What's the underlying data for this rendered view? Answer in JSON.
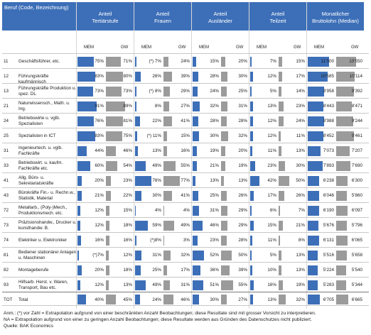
{
  "headers": {
    "beruf": "Beruf (Code, Bezeichnung)",
    "groups": [
      {
        "line1": "Anteil",
        "line2": "Tertiärstufe"
      },
      {
        "line1": "Anteil",
        "line2": "Frauen"
      },
      {
        "line1": "Anteil",
        "line2": "Ausländer"
      },
      {
        "line1": "Anteil",
        "line2": "Teilzeit"
      },
      {
        "line1": "Monatlicher",
        "line2": "Bruttolohn (Median)"
      }
    ],
    "sub_mem": "MEM",
    "sub_gw": "GW"
  },
  "colors": {
    "header": "#3d6fb8",
    "mem_bar": "#3d6fb8",
    "gw_bar": "#9b9b9b"
  },
  "rows": [
    {
      "code": "11",
      "name": [
        "Geschäftsführer, etc."
      ],
      "values": [
        {
          "mem": "75%",
          "mem_pct": 75,
          "gw": "71%",
          "gw_pct": 71
        },
        {
          "mem": "(*) 7%",
          "mem_pct": 7,
          "gw": "24%",
          "gw_pct": 24
        },
        {
          "mem": "15%",
          "mem_pct": 15,
          "gw": "20%",
          "gw_pct": 20
        },
        {
          "mem": "7%",
          "mem_pct": 7,
          "gw": "15%",
          "gw_pct": 15
        },
        {
          "mem": "11'500",
          "mem_num": 11500,
          "gw": "10'550",
          "gw_num": 10550
        }
      ]
    },
    {
      "code": "12",
      "name": [
        "Führungskräfte kaufmännisch"
      ],
      "values": [
        {
          "mem": "83%",
          "mem_pct": 83,
          "gw": "80%",
          "gw_pct": 80
        },
        {
          "mem": "26%",
          "mem_pct": 26,
          "gw": "39%",
          "gw_pct": 39
        },
        {
          "mem": "28%",
          "mem_pct": 28,
          "gw": "30%",
          "gw_pct": 30
        },
        {
          "mem": "12%",
          "mem_pct": 12,
          "gw": "17%",
          "gw_pct": 17
        },
        {
          "mem": "10'585",
          "mem_num": 10585,
          "gw": "10'114",
          "gw_num": 10114
        }
      ]
    },
    {
      "code": "13",
      "name": [
        "Führungskräfte Produktion u.",
        "spez. DL"
      ],
      "values": [
        {
          "mem": "73%",
          "mem_pct": 73,
          "gw": "73%",
          "gw_pct": 73
        },
        {
          "mem": "(*) 8%",
          "mem_pct": 8,
          "gw": "29%",
          "gw_pct": 29
        },
        {
          "mem": "24%",
          "mem_pct": 24,
          "gw": "25%",
          "gw_pct": 25
        },
        {
          "mem": "5%",
          "mem_pct": 5,
          "gw": "14%",
          "gw_pct": 14
        },
        {
          "mem": "8'958",
          "mem_num": 8958,
          "gw": "9'392",
          "gw_num": 9392
        }
      ]
    },
    {
      "code": "21",
      "name": [
        "Naturwissensch., Math. u.",
        "Ing."
      ],
      "values": [
        {
          "mem": "91%",
          "mem_pct": 91,
          "gw": "89%",
          "gw_pct": 89
        },
        {
          "mem": "8%",
          "mem_pct": 8,
          "gw": "27%",
          "gw_pct": 27
        },
        {
          "mem": "32%",
          "mem_pct": 32,
          "gw": "31%",
          "gw_pct": 31
        },
        {
          "mem": "13%",
          "mem_pct": 13,
          "gw": "23%",
          "gw_pct": 23
        },
        {
          "mem": "8'443",
          "mem_num": 8443,
          "gw": "8'471",
          "gw_num": 8471
        }
      ]
    },
    {
      "code": "24",
      "name": [
        "Betriebswirte u. vglb.",
        "Spezialisten"
      ],
      "values": [
        {
          "mem": "76%",
          "mem_pct": 76,
          "gw": "81%",
          "gw_pct": 81
        },
        {
          "mem": "22%",
          "mem_pct": 22,
          "gw": "41%",
          "gw_pct": 41
        },
        {
          "mem": "28%",
          "mem_pct": 28,
          "gw": "28%",
          "gw_pct": 28
        },
        {
          "mem": "12%",
          "mem_pct": 12,
          "gw": "24%",
          "gw_pct": 24
        },
        {
          "mem": "8'988",
          "mem_num": 8988,
          "gw": "9'244",
          "gw_num": 9244
        }
      ]
    },
    {
      "code": "25",
      "name": [
        "Spezialisten in ICT"
      ],
      "values": [
        {
          "mem": "83%",
          "mem_pct": 83,
          "gw": "75%",
          "gw_pct": 75
        },
        {
          "mem": "(*) 11%",
          "mem_pct": 11,
          "gw": "15%",
          "gw_pct": 15
        },
        {
          "mem": "30%",
          "mem_pct": 30,
          "gw": "32%",
          "gw_pct": 32
        },
        {
          "mem": "12%",
          "mem_pct": 12,
          "gw": "11%",
          "gw_pct": 11
        },
        {
          "mem": "8'452",
          "mem_num": 8452,
          "gw": "9'461",
          "gw_num": 9461
        }
      ]
    },
    {
      "code": "31",
      "name": [
        "Ingenieurtech. u. vglb.",
        "Fachkräfte"
      ],
      "values": [
        {
          "mem": "44%",
          "mem_pct": 44,
          "gw": "46%",
          "gw_pct": 46
        },
        {
          "mem": "13%",
          "mem_pct": 13,
          "gw": "16%",
          "gw_pct": 16
        },
        {
          "mem": "19%",
          "mem_pct": 19,
          "gw": "20%",
          "gw_pct": 20
        },
        {
          "mem": "11%",
          "mem_pct": 11,
          "gw": "13%",
          "gw_pct": 13
        },
        {
          "mem": "7'073",
          "mem_num": 7073,
          "gw": "7'207",
          "gw_num": 7207
        }
      ]
    },
    {
      "code": "33",
      "name": [
        "Betriebswirt. u. kaufm.",
        "Fachkräfte etc."
      ],
      "values": [
        {
          "mem": "60%",
          "mem_pct": 60,
          "gw": "54%",
          "gw_pct": 54
        },
        {
          "mem": "49%",
          "mem_pct": 49,
          "gw": "55%",
          "gw_pct": 55
        },
        {
          "mem": "21%",
          "mem_pct": 21,
          "gw": "19%",
          "gw_pct": 19
        },
        {
          "mem": "23%",
          "mem_pct": 23,
          "gw": "30%",
          "gw_pct": 30
        },
        {
          "mem": "7'893",
          "mem_num": 7893,
          "gw": "7'690",
          "gw_num": 7690
        }
      ]
    },
    {
      "code": "41",
      "name": [
        "Allg. Büro- u.",
        "Sekretariatskräfte"
      ],
      "values": [
        {
          "mem": "20%",
          "mem_pct": 20,
          "gw": "23%",
          "gw_pct": 23
        },
        {
          "mem": "76%",
          "mem_pct": 76,
          "gw": "77%",
          "gw_pct": 77
        },
        {
          "mem": "13%",
          "mem_pct": 13,
          "gw": "13%",
          "gw_pct": 13
        },
        {
          "mem": "42%",
          "mem_pct": 42,
          "gw": "50%",
          "gw_pct": 50
        },
        {
          "mem": "6'238",
          "mem_num": 6238,
          "gw": "6'300",
          "gw_num": 6300
        }
      ]
    },
    {
      "code": "43",
      "name": [
        "Bürokräfte Fin.- u. Rechn.w.,",
        "Statistik, Material"
      ],
      "values": [
        {
          "mem": "21%",
          "mem_pct": 21,
          "gw": "22%",
          "gw_pct": 22
        },
        {
          "mem": "30%",
          "mem_pct": 30,
          "gw": "41%",
          "gw_pct": 41
        },
        {
          "mem": "25%",
          "mem_pct": 25,
          "gw": "26%",
          "gw_pct": 26
        },
        {
          "mem": "17%",
          "mem_pct": 17,
          "gw": "26%",
          "gw_pct": 26
        },
        {
          "mem": "6'046",
          "mem_num": 6046,
          "gw": "5'860",
          "gw_num": 5860
        }
      ]
    },
    {
      "code": "72",
      "name": [
        "Metallarb., (Poly-)Mech.,",
        "Produktionsmech. etc."
      ],
      "values": [
        {
          "mem": "12%",
          "mem_pct": 12,
          "gw": "15%",
          "gw_pct": 15
        },
        {
          "mem": "4%",
          "mem_pct": 4,
          "gw": "4%",
          "gw_pct": 4
        },
        {
          "mem": "31%",
          "mem_pct": 31,
          "gw": "29%",
          "gw_pct": 29
        },
        {
          "mem": "6%",
          "mem_pct": 6,
          "gw": "7%",
          "gw_pct": 7
        },
        {
          "mem": "6'190",
          "mem_num": 6190,
          "gw": "6'097",
          "gw_num": 6097
        }
      ]
    },
    {
      "code": "73",
      "name": [
        "Präzisionshandw., Drucker u.",
        "kunsthandw. B."
      ],
      "values": [
        {
          "mem": "12%",
          "mem_pct": 12,
          "gw": "18%",
          "gw_pct": 18
        },
        {
          "mem": "59%",
          "mem_pct": 59,
          "gw": "49%",
          "gw_pct": 49
        },
        {
          "mem": "46%",
          "mem_pct": 46,
          "gw": "29%",
          "gw_pct": 29
        },
        {
          "mem": "15%",
          "mem_pct": 15,
          "gw": "21%",
          "gw_pct": 21
        },
        {
          "mem": "5'676",
          "mem_num": 5676,
          "gw": "5'796",
          "gw_num": 5796
        }
      ]
    },
    {
      "code": "74",
      "name": [
        "Elektriker u. Elektroniker"
      ],
      "values": [
        {
          "mem": "16%",
          "mem_pct": 16,
          "gw": "16%",
          "gw_pct": 16
        },
        {
          "mem": "(*)8%",
          "mem_pct": 8,
          "gw": "3%",
          "gw_pct": 3
        },
        {
          "mem": "23%",
          "mem_pct": 23,
          "gw": "28%",
          "gw_pct": 28
        },
        {
          "mem": "11%",
          "mem_pct": 11,
          "gw": "8%",
          "gw_pct": 8
        },
        {
          "mem": "6'131",
          "mem_num": 6131,
          "gw": "6'065",
          "gw_num": 6065
        }
      ]
    },
    {
      "code": "81",
      "name": [
        "Bediener stationärer Anlagen",
        "u. Maschinen"
      ],
      "values": [
        {
          "mem": "(*)7%",
          "mem_pct": 7,
          "gw": "12%",
          "gw_pct": 12
        },
        {
          "mem": "31%",
          "mem_pct": 31,
          "gw": "32%",
          "gw_pct": 32
        },
        {
          "mem": "52%",
          "mem_pct": 52,
          "gw": "50%",
          "gw_pct": 50
        },
        {
          "mem": "5%",
          "mem_pct": 5,
          "gw": "13%",
          "gw_pct": 13
        },
        {
          "mem": "5'516",
          "mem_num": 5516,
          "gw": "5'658",
          "gw_num": 5658
        }
      ]
    },
    {
      "code": "82",
      "name": [
        "Montageberufe"
      ],
      "values": [
        {
          "mem": "20%",
          "mem_pct": 20,
          "gw": "18%",
          "gw_pct": 18
        },
        {
          "mem": "25%",
          "mem_pct": 25,
          "gw": "17%",
          "gw_pct": 17
        },
        {
          "mem": "36%",
          "mem_pct": 36,
          "gw": "39%",
          "gw_pct": 39
        },
        {
          "mem": "10%",
          "mem_pct": 10,
          "gw": "13%",
          "gw_pct": 13
        },
        {
          "mem": "5'224",
          "mem_num": 5224,
          "gw": "5'540",
          "gw_num": 5540
        }
      ]
    },
    {
      "code": "93",
      "name": [
        "Hilfsarb. Herst. v. Waren,",
        "Transport, Bau etc."
      ],
      "values": [
        {
          "mem": "12%",
          "mem_pct": 12,
          "gw": "13%",
          "gw_pct": 13
        },
        {
          "mem": "49%",
          "mem_pct": 49,
          "gw": "31%",
          "gw_pct": 31
        },
        {
          "mem": "51%",
          "mem_pct": 51,
          "gw": "55%",
          "gw_pct": 55
        },
        {
          "mem": "16%",
          "mem_pct": 16,
          "gw": "19%",
          "gw_pct": 19
        },
        {
          "mem": "5'283",
          "mem_num": 5283,
          "gw": "5'344",
          "gw_num": 5344
        }
      ]
    }
  ],
  "total": {
    "code": "TOT",
    "name": [
      "Total"
    ],
    "values": [
      {
        "mem": "40%",
        "mem_pct": 40,
        "gw": "45%",
        "gw_pct": 45
      },
      {
        "mem": "24%",
        "mem_pct": 24,
        "gw": "46%",
        "gw_pct": 46
      },
      {
        "mem": "30%",
        "mem_pct": 30,
        "gw": "27%",
        "gw_pct": 27
      },
      {
        "mem": "13%",
        "mem_pct": 13,
        "gw": "32%",
        "gw_pct": 32
      },
      {
        "mem": "6'705",
        "mem_num": 6705,
        "gw": "6'665",
        "gw_num": 6665
      }
    ]
  },
  "salary_scale_max": 11500,
  "notes": [
    "Anm.: (*) vor Zahl = Extrapolation aufgrund von einer beschränkten Anzahl Beobachtungen; diese Resultate sind mit grosser Vorsicht zu interpretieren.",
    "NA = Extrapolation aufgrund von einer zu geringen Anzahl Beobachtungen; diese Resultate werden aus Gründen des Datenschutzes nicht publiziert.",
    "Quelle: BAK Economics"
  ]
}
